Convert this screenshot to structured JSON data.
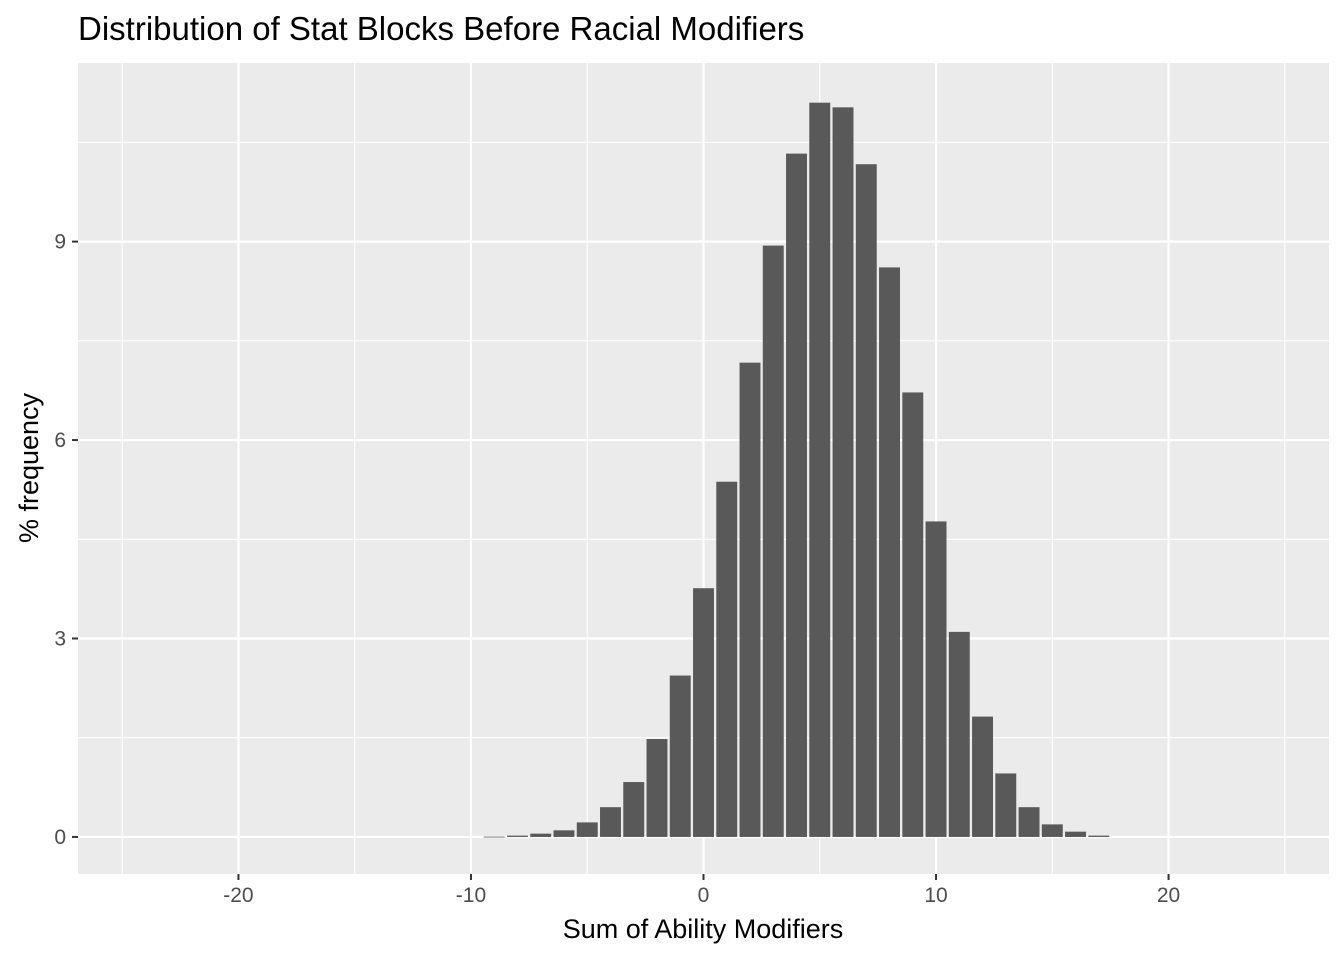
{
  "chart_data": {
    "type": "bar",
    "title": "Distribution of Stat Blocks Before Racial Modifiers",
    "xlabel": "Sum of Ability Modifiers",
    "ylabel": "% frequency",
    "xlim": [
      -26.9,
      26.9
    ],
    "ylim": [
      -0.56,
      11.7
    ],
    "x_ticks": [
      -20,
      -10,
      0,
      10,
      20
    ],
    "x_tick_labels": [
      "-20",
      "-10",
      "0",
      "10",
      "20"
    ],
    "y_ticks": [
      0,
      3,
      6,
      9
    ],
    "y_tick_labels": [
      "0",
      "3",
      "6",
      "9"
    ],
    "grid": true,
    "panel_background": "#ebebeb",
    "bar_color": "#595959",
    "bar_width": 0.9,
    "x": [
      -9,
      -8,
      -7,
      -6,
      -5,
      -4,
      -3,
      -2,
      -1,
      0,
      1,
      2,
      3,
      4,
      5,
      6,
      7,
      8,
      9,
      10,
      11,
      12,
      13,
      14,
      15,
      16,
      17
    ],
    "values": [
      0.005,
      0.02,
      0.05,
      0.1,
      0.22,
      0.45,
      0.83,
      1.48,
      2.44,
      3.76,
      5.37,
      7.17,
      8.94,
      10.33,
      11.1,
      11.03,
      10.17,
      8.61,
      6.72,
      4.77,
      3.1,
      1.82,
      0.96,
      0.45,
      0.19,
      0.08,
      0.02
    ]
  }
}
